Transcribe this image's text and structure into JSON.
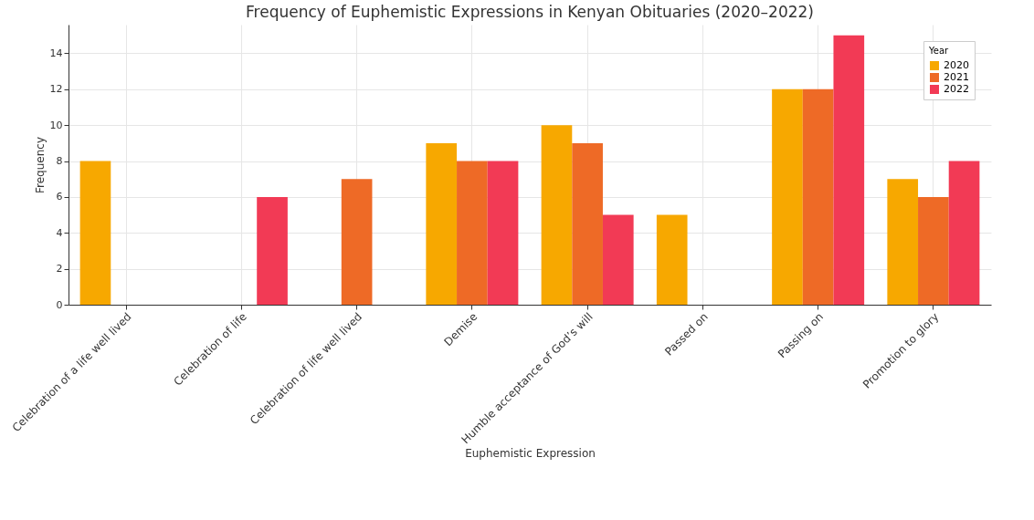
{
  "chart_data": {
    "type": "bar",
    "title": "Frequency of Euphemistic Expressions in Kenyan Obituaries (2020–2022)",
    "xlabel": "Euphemistic Expression",
    "ylabel": "Frequency",
    "legend_title": "Year",
    "categories": [
      "Celebration of a life well lived",
      "Celebration of life",
      "Celebration of life well lived",
      "Demise",
      "Humble acceptance of God’s will",
      "Passed on",
      "Passing on",
      "Promotion to glory"
    ],
    "series": [
      {
        "name": "2020",
        "color": "#f7a800",
        "values": [
          8,
          null,
          null,
          9,
          10,
          5,
          12,
          7
        ]
      },
      {
        "name": "2021",
        "color": "#ee6a26",
        "values": [
          null,
          null,
          7,
          8,
          9,
          null,
          12,
          6
        ]
      },
      {
        "name": "2022",
        "color": "#f23a55",
        "values": [
          null,
          6,
          null,
          8,
          5,
          null,
          15,
          8
        ]
      }
    ],
    "ylim": [
      0,
      15.6
    ],
    "yticks": [
      0,
      2,
      4,
      6,
      8,
      10,
      12,
      14
    ],
    "grid": true,
    "legend": "top right"
  }
}
